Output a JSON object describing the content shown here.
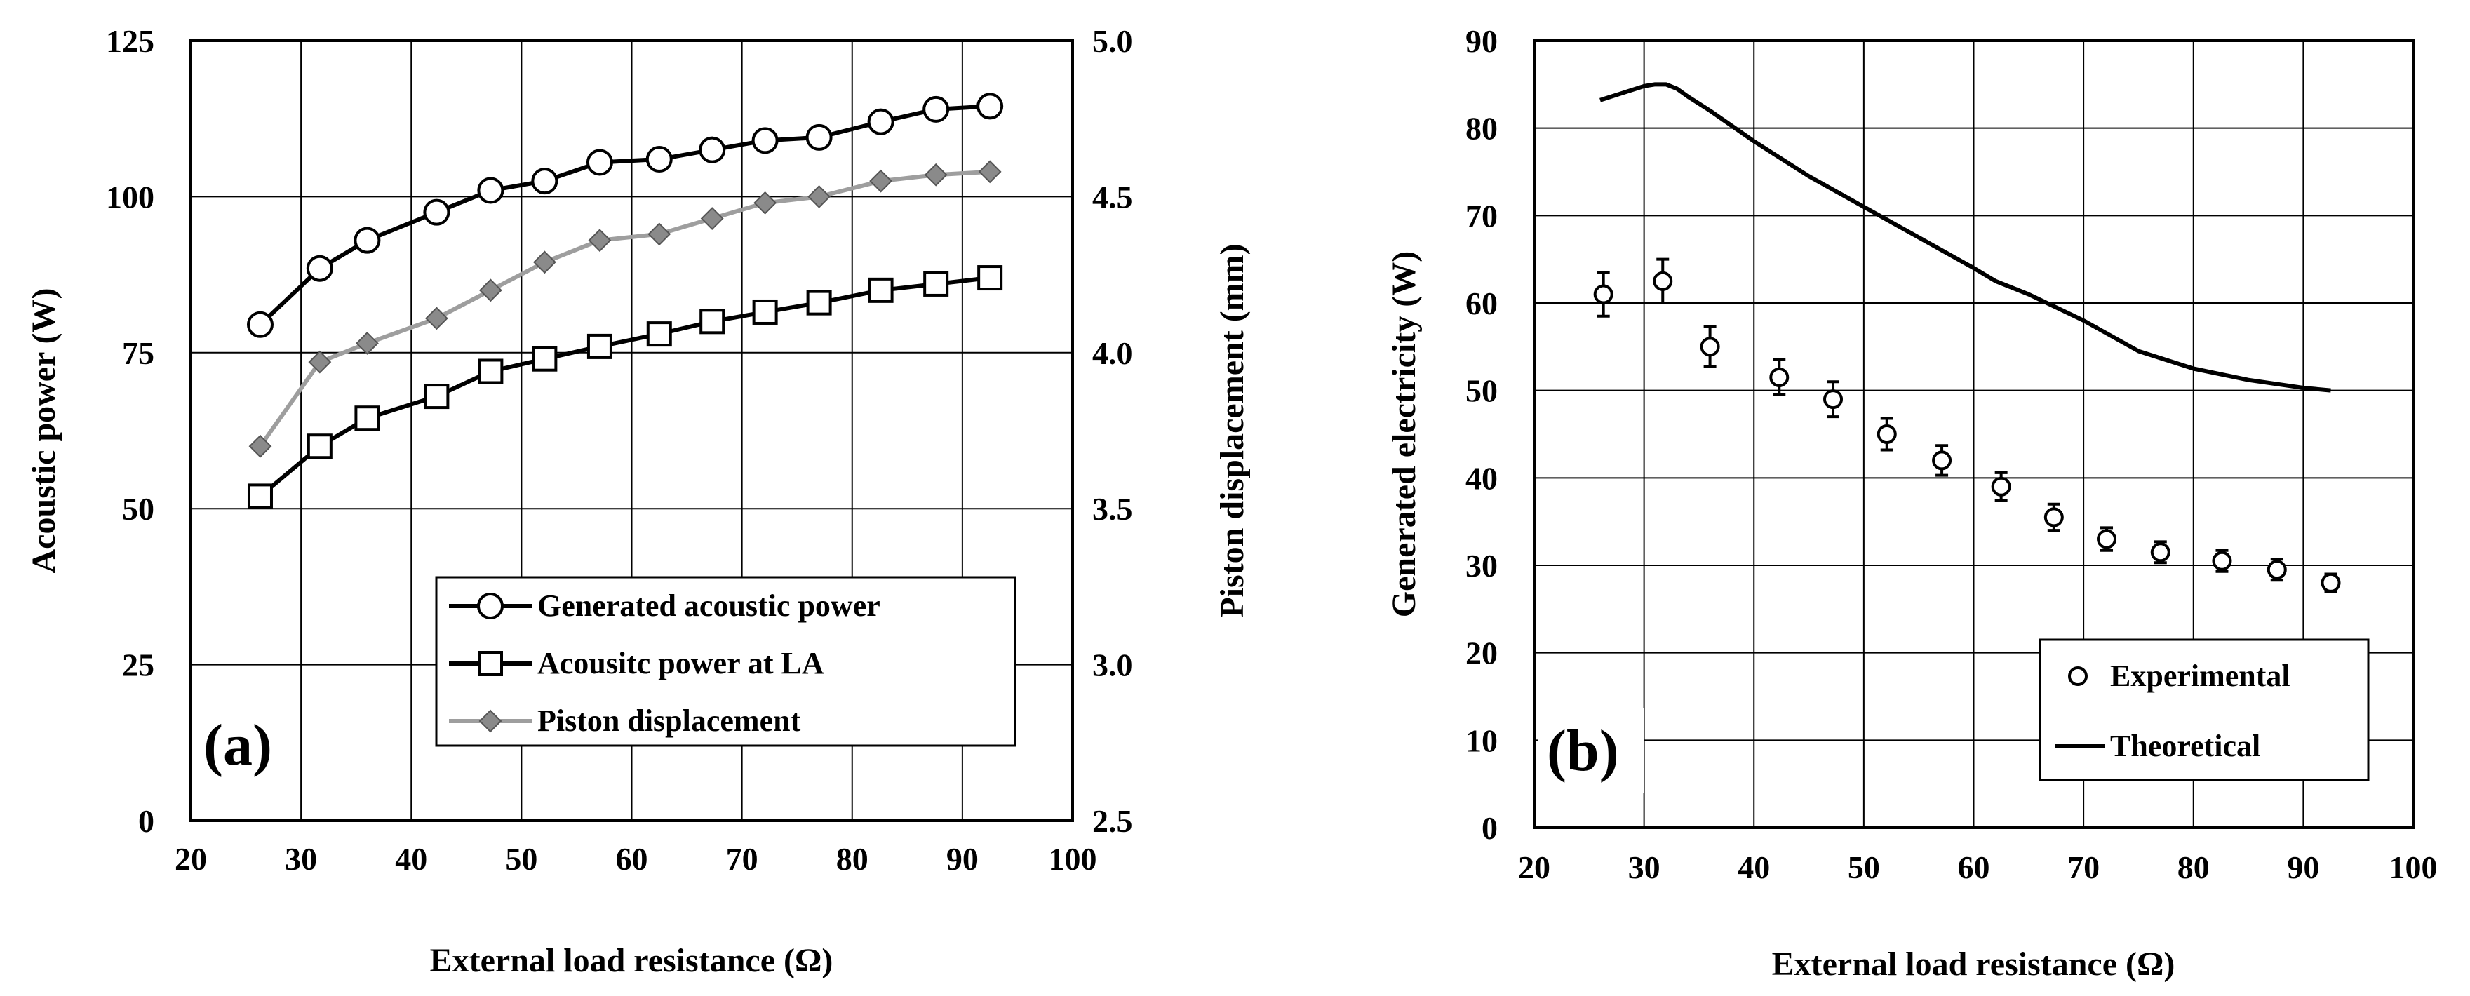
{
  "colors": {
    "black": "#000000",
    "gray": "#9e9e9e",
    "diamond_fill": "#8a8a8a",
    "background": "#ffffff"
  },
  "chart_data": [
    {
      "id": "a",
      "type": "line",
      "panel_label": "(a)",
      "title": "",
      "xlabel": "External load resistance (Ω)",
      "ylabel": "Acoustic power (W)",
      "y2label": "Piston displacement (mm)",
      "xlim": [
        20,
        100
      ],
      "ylim": [
        0,
        125
      ],
      "y2lim": [
        2.5,
        5.0
      ],
      "grid": true,
      "legend_position": "bottom-right",
      "xticks": [
        "20",
        "30",
        "40",
        "50",
        "60",
        "70",
        "80",
        "90",
        "100"
      ],
      "yticks": [
        "0",
        "25",
        "50",
        "75",
        "100",
        "125"
      ],
      "y2ticks": [
        "2.5",
        "3.0",
        "3.5",
        "4.0",
        "4.5",
        "5.0"
      ],
      "x": [
        26.3,
        31.7,
        36.0,
        42.3,
        47.2,
        52.1,
        57.1,
        62.5,
        67.3,
        72.1,
        77.0,
        82.6,
        87.6,
        92.5
      ],
      "series": [
        {
          "name": "Generated acoustic power",
          "axis": "left",
          "marker": "open-circle",
          "values": [
            79.5,
            88.5,
            93.0,
            97.5,
            101.0,
            102.5,
            105.5,
            106.0,
            107.5,
            109.0,
            109.5,
            112.0,
            114.0,
            114.5
          ]
        },
        {
          "name": "Acousitc power at LA",
          "axis": "left",
          "marker": "open-square",
          "values": [
            52.0,
            60.0,
            64.5,
            68.0,
            72.0,
            74.0,
            76.0,
            78.0,
            80.0,
            81.5,
            83.0,
            85.0,
            86.0,
            87.0
          ]
        },
        {
          "name": "Piston displacement",
          "axis": "right",
          "marker": "gray-diamond",
          "values": [
            3.7,
            3.97,
            4.03,
            4.11,
            4.2,
            4.29,
            4.36,
            4.38,
            4.43,
            4.48,
            4.5,
            4.55,
            4.57,
            4.58
          ]
        }
      ]
    },
    {
      "id": "b",
      "type": "scatter",
      "panel_label": "(b)",
      "title": "",
      "xlabel": "External load resistance (Ω)",
      "ylabel": "Generated electricity (W)",
      "xlim": [
        20,
        100
      ],
      "ylim": [
        0,
        90
      ],
      "grid": true,
      "legend_position": "bottom-right",
      "xticks": [
        "20",
        "30",
        "40",
        "50",
        "60",
        "70",
        "80",
        "90",
        "100"
      ],
      "yticks": [
        "0",
        "10",
        "20",
        "30",
        "40",
        "50",
        "60",
        "70",
        "80",
        "90"
      ],
      "series": [
        {
          "name": "Experimental",
          "marker": "open-circle-errorbar",
          "x": [
            26.3,
            31.7,
            36.0,
            42.3,
            47.2,
            52.1,
            57.1,
            62.5,
            67.3,
            72.1,
            77.0,
            82.6,
            87.6,
            92.5
          ],
          "values": [
            61.0,
            62.5,
            55.0,
            51.5,
            49.0,
            45.0,
            42.0,
            39.0,
            35.5,
            33.0,
            31.5,
            30.5,
            29.5,
            28.0
          ],
          "errors": [
            2.5,
            2.5,
            2.3,
            2.0,
            2.0,
            1.8,
            1.7,
            1.6,
            1.5,
            1.3,
            1.2,
            1.2,
            1.2,
            1.0
          ]
        },
        {
          "name": "Theoretical",
          "marker": "line",
          "x": [
            26.0,
            28.0,
            30.0,
            31.0,
            32.0,
            33.0,
            34.0,
            36.0,
            40.0,
            45.0,
            50.0,
            55.0,
            60.0,
            62.0,
            65.0,
            70.0,
            75.0,
            80.0,
            85.0,
            90.0,
            92.5
          ],
          "values": [
            83.2,
            84.0,
            84.8,
            85.0,
            85.0,
            84.5,
            83.6,
            82.0,
            78.5,
            74.5,
            71.0,
            67.5,
            64.0,
            62.5,
            61.0,
            58.0,
            54.5,
            52.5,
            51.2,
            50.3,
            50.0
          ]
        }
      ]
    }
  ]
}
